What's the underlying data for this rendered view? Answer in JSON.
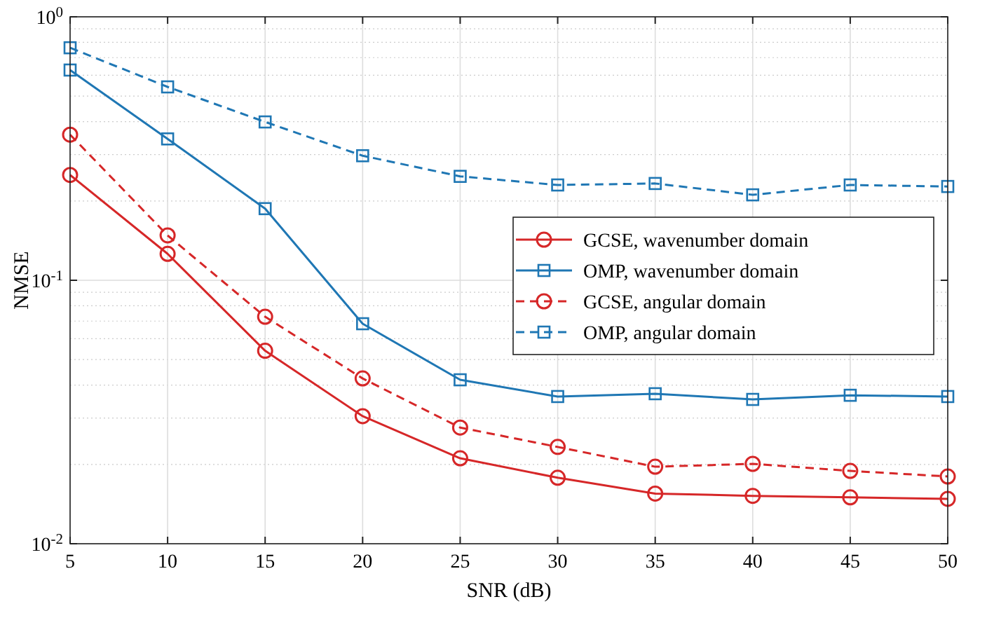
{
  "chart_data": {
    "type": "line",
    "xlabel": "SNR (dB)",
    "ylabel": "NMSE",
    "log": "y",
    "grid": true,
    "legend": "right",
    "x": [
      5,
      10,
      15,
      20,
      25,
      30,
      35,
      40,
      45,
      50
    ],
    "xlim": [
      5,
      50
    ],
    "xticks": [
      5,
      10,
      15,
      20,
      25,
      30,
      35,
      40,
      45,
      50
    ],
    "ylim": [
      0.01,
      1
    ],
    "yticks": [
      {
        "value": 0.01,
        "label": "10$^{-2}$"
      },
      {
        "value": 0.1,
        "label": "10$^{-1}$"
      },
      {
        "value": 1,
        "label": "10$^{0}$"
      }
    ],
    "series": [
      {
        "name": "GCSE, wavenumber domain",
        "color": "#d62728",
        "marker": "circle",
        "line_style": "solid",
        "values": [
          0.251,
          0.126,
          0.054,
          0.0305,
          0.0211,
          0.0178,
          0.0155,
          0.0152,
          0.015,
          0.0148
        ]
      },
      {
        "name": "OMP, wavenumber domain",
        "color": "#1f77b4",
        "marker": "square",
        "line_style": "solid",
        "values": [
          0.628,
          0.344,
          0.187,
          0.0684,
          0.0419,
          0.0362,
          0.0371,
          0.0353,
          0.0366,
          0.0362
        ]
      },
      {
        "name": "GCSE, angular domain",
        "color": "#d62728",
        "marker": "circle",
        "line_style": "dashed",
        "values": [
          0.357,
          0.148,
          0.0727,
          0.0424,
          0.0276,
          0.0233,
          0.0196,
          0.0201,
          0.0189,
          0.018
        ]
      },
      {
        "name": "OMP, angular domain",
        "color": "#1f77b4",
        "marker": "square",
        "line_style": "dashed",
        "values": [
          0.763,
          0.542,
          0.399,
          0.297,
          0.248,
          0.23,
          0.233,
          0.211,
          0.23,
          0.227
        ]
      }
    ]
  }
}
